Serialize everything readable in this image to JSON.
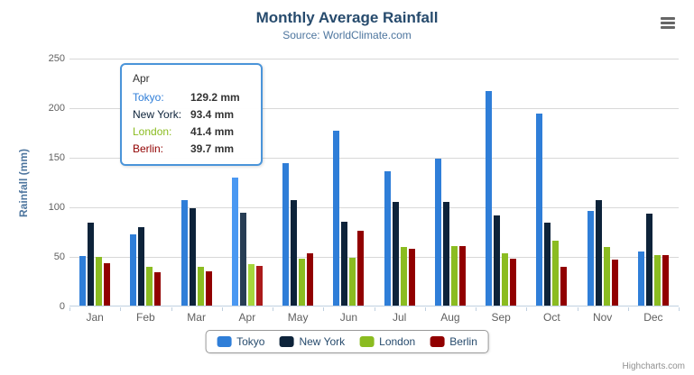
{
  "chart": {
    "title": "Monthly Average Rainfall",
    "subtitle": "Source: WorldClimate.com",
    "credits": "Highcharts.com"
  },
  "chart_data": {
    "type": "bar",
    "title": "Monthly Average Rainfall",
    "subtitle": "Source: WorldClimate.com",
    "xlabel": "",
    "ylabel": "Rainfall (mm)",
    "ylim": [
      0,
      250
    ],
    "yticks": [
      0,
      50,
      100,
      150,
      200,
      250
    ],
    "grid": true,
    "legend_position": "bottom",
    "categories": [
      "Jan",
      "Feb",
      "Mar",
      "Apr",
      "May",
      "Jun",
      "Jul",
      "Aug",
      "Sep",
      "Oct",
      "Nov",
      "Dec"
    ],
    "series": [
      {
        "name": "Tokyo",
        "color": "#2f7ed8",
        "hover_color": "#4a98f2",
        "values": [
          49.9,
          71.5,
          106.4,
          129.2,
          144.0,
          176.0,
          135.6,
          148.5,
          216.4,
          194.1,
          95.6,
          54.4
        ]
      },
      {
        "name": "New York",
        "color": "#0d233a",
        "hover_color": "#273d54",
        "values": [
          83.6,
          78.8,
          98.5,
          93.4,
          106.0,
          84.5,
          105.0,
          104.3,
          91.2,
          83.5,
          106.6,
          92.3
        ]
      },
      {
        "name": "London",
        "color": "#8bbc21",
        "hover_color": "#a5d63b",
        "values": [
          48.9,
          38.8,
          39.3,
          41.4,
          47.0,
          48.3,
          59.0,
          59.6,
          52.4,
          65.2,
          59.3,
          51.2
        ]
      },
      {
        "name": "Berlin",
        "color": "#910000",
        "hover_color": "#ab1a1a",
        "values": [
          42.4,
          33.2,
          34.5,
          39.7,
          52.6,
          75.5,
          57.4,
          60.4,
          47.6,
          39.1,
          46.8,
          51.1
        ]
      }
    ],
    "hovered_category_index": 3
  },
  "tooltip": {
    "header": "Apr",
    "border_color": "#4a94d9",
    "rows": [
      {
        "label": "Tokyo:",
        "value": "129.2 mm",
        "color": "#2f7ed8"
      },
      {
        "label": "New York:",
        "value": "93.4 mm",
        "color": "#0d233a"
      },
      {
        "label": "London:",
        "value": "41.4 mm",
        "color": "#8bbc21"
      },
      {
        "label": "Berlin:",
        "value": "39.7 mm",
        "color": "#910000"
      }
    ]
  }
}
